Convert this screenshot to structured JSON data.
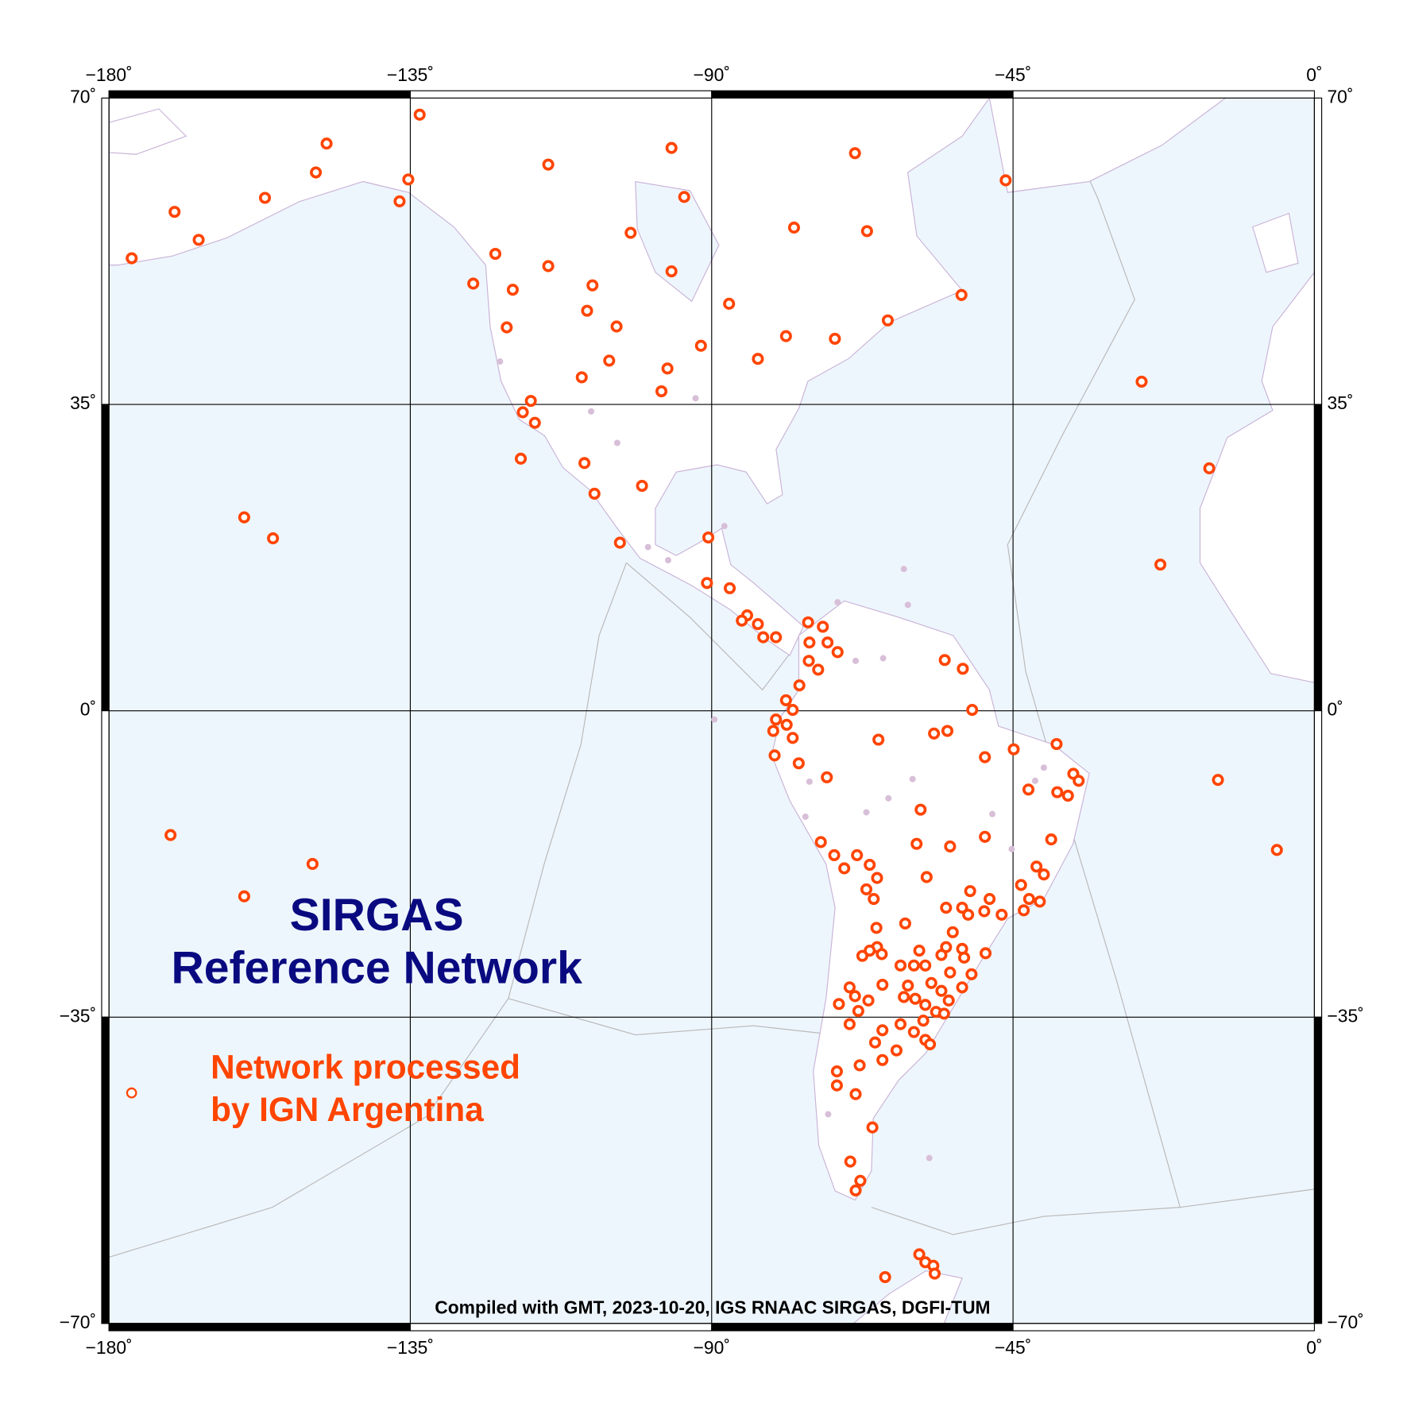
{
  "map": {
    "title": [
      "SIRGAS",
      "Reference Network"
    ],
    "legend": [
      "Network processed",
      "by IGN Argentina"
    ],
    "credit": "Compiled with GMT, 2023-10-20, IGS RNAAC SIRGAS, DGFI-TUM",
    "xlim": [
      -180,
      0
    ],
    "ylim": [
      -70,
      70
    ],
    "xticks": [
      {
        "value": -180,
        "label": "−180˚"
      },
      {
        "value": -135,
        "label": "−135˚"
      },
      {
        "value": -90,
        "label": "−90˚"
      },
      {
        "value": -45,
        "label": "−45˚"
      },
      {
        "value": 0,
        "label": "0˚"
      }
    ],
    "yticks": [
      {
        "value": 70,
        "label": "70˚"
      },
      {
        "value": 35,
        "label": "35˚"
      },
      {
        "value": 0,
        "label": "0˚"
      },
      {
        "value": -35,
        "label": "−35˚"
      },
      {
        "value": -70,
        "label": "−70˚"
      }
    ],
    "grid": true,
    "stations": {
      "color": "#ff4500",
      "lon": [
        -133.6,
        -147.5,
        -149.1,
        -156.7,
        -170.2,
        -166.6,
        -176.6,
        -135.3,
        -136.6,
        -114.4,
        -96.0,
        -94.1,
        -68.6,
        -46.1,
        -77.7,
        -66.8,
        -102.1,
        -122.3,
        -114.4,
        -96.0,
        -125.6,
        -119.7,
        -107.8,
        -108.6,
        -87.4,
        -52.7,
        -120.6,
        -104.2,
        -63.7,
        -78.9,
        -71.6,
        -91.6,
        -105.3,
        -83.1,
        -109.4,
        -96.6,
        -97.5,
        -25.8,
        -117.0,
        -118.2,
        -116.4,
        -118.5,
        -15.7,
        -109.0,
        -107.5,
        -100.4,
        -103.7,
        -159.8,
        -155.5,
        -90.5,
        -23.0,
        -90.7,
        -87.3,
        -84.7,
        -85.5,
        -83.1,
        -82.3,
        -80.4,
        -75.6,
        -73.4,
        -75.4,
        -72.7,
        -71.2,
        -75.5,
        -74.1,
        -76.9,
        -55.2,
        -52.5,
        -78.9,
        -77.9,
        -80.4,
        -78.8,
        -80.8,
        -77.9,
        -80.6,
        -77.0,
        -65.1,
        -51.1,
        -56.8,
        -54.8,
        -49.2,
        -44.9,
        -38.5,
        -36.0,
        -35.2,
        -14.4,
        -72.8,
        -38.4,
        -36.8,
        -42.7,
        -58.8,
        -49.2,
        -39.3,
        -59.4,
        -54.4,
        -5.6,
        -73.7,
        -71.7,
        -68.3,
        -70.2,
        -66.4,
        -65.3,
        -41.5,
        -40.4,
        -170.8,
        -149.6,
        -159.8,
        -57.9,
        -51.4,
        -48.5,
        -55.0,
        -52.6,
        -49.3,
        -46.7,
        -43.8,
        -42.6,
        -41.0,
        -43.4,
        -66.9,
        -65.8,
        -61.1,
        -65.4,
        -54.0,
        -51.7,
        -55.0,
        -49.1,
        -52.6,
        -67.5,
        -65.3,
        -66.4,
        -64.6,
        -61.8,
        -59.0,
        -59.8,
        -58.1,
        -55.7,
        -52.3,
        -54.4,
        -51.2,
        -69.4,
        -68.6,
        -64.5,
        -60.7,
        -57.2,
        -55.7,
        -52.6,
        -71.0,
        -68.1,
        -66.6,
        -61.3,
        -59.6,
        -58.1,
        -54.6,
        -56.5,
        -58.4,
        -55.3,
        -69.4,
        -64.5,
        -61.8,
        -59.8,
        -65.6,
        -58.1,
        -57.4,
        -62.4,
        -64.5,
        -71.3,
        -67.9,
        -71.3,
        -68.5,
        -66.0,
        -69.3,
        -67.8,
        -68.5,
        -59.0,
        -58.1,
        -56.9,
        -56.7,
        -64.1
      ],
      "lat": [
        68.1,
        64.8,
        61.5,
        58.6,
        57.0,
        53.8,
        51.7,
        60.7,
        58.2,
        62.4,
        64.3,
        58.7,
        63.7,
        60.6,
        55.2,
        54.8,
        54.6,
        52.2,
        50.8,
        50.2,
        48.8,
        48.1,
        48.6,
        45.7,
        46.5,
        47.5,
        43.8,
        43.9,
        44.6,
        42.8,
        42.5,
        41.7,
        40.0,
        40.2,
        38.1,
        39.1,
        36.5,
        37.6,
        35.4,
        34.1,
        32.9,
        28.8,
        27.7,
        28.3,
        24.8,
        25.7,
        19.2,
        22.1,
        19.7,
        19.8,
        16.7,
        14.6,
        14.0,
        10.9,
        10.3,
        9.9,
        8.4,
        8.4,
        10.1,
        9.6,
        7.8,
        7.8,
        6.7,
        5.7,
        4.7,
        2.9,
        5.8,
        4.8,
        1.2,
        0.1,
        -1.0,
        -1.6,
        -2.3,
        -3.1,
        -5.1,
        -6.0,
        -3.3,
        0.1,
        -2.6,
        -2.3,
        -5.3,
        -4.4,
        -3.8,
        -7.2,
        -8.0,
        -7.9,
        -7.6,
        -9.3,
        -9.7,
        -9.0,
        -11.3,
        -14.4,
        -14.7,
        -15.2,
        -15.5,
        -15.9,
        -15.0,
        -16.5,
        -16.5,
        -18.0,
        -17.6,
        -19.1,
        -17.8,
        -18.7,
        -14.2,
        -17.5,
        -21.2,
        -19.0,
        -20.6,
        -21.5,
        -22.5,
        -22.5,
        -22.9,
        -23.3,
        -19.9,
        -21.5,
        -21.8,
        -22.8,
        -20.4,
        -21.5,
        -24.3,
        -24.8,
        -25.3,
        -23.3,
        -27.0,
        -27.7,
        -27.2,
        -28.0,
        -27.0,
        -27.4,
        -27.8,
        -29.1,
        -27.4,
        -29.1,
        -29.1,
        -27.9,
        -28.2,
        -29.9,
        -30.1,
        -31.6,
        -32.6,
        -31.3,
        -31.4,
        -31.1,
        -32.0,
        -31.6,
        -33.5,
        -34.3,
        -33.1,
        -32.7,
        -32.9,
        -33.6,
        -33.1,
        -34.4,
        -35.4,
        -34.6,
        -35.8,
        -36.5,
        -35.8,
        -36.7,
        -37.9,
        -37.6,
        -38.1,
        -38.8,
        -39.9,
        -41.2,
        -40.5,
        -42.8,
        -43.8,
        -47.6,
        -51.5,
        -53.7,
        -54.8,
        -62.1,
        -63.0,
        -63.4,
        -64.3,
        -64.7
      ]
    },
    "other_stations": {
      "color": "#d8bfd8",
      "lon": [
        -121.6,
        -92.4,
        -108.0,
        -104.1,
        -99.5,
        -96.5,
        -88.1,
        -61.3,
        -60.7,
        -71.2,
        -68.5,
        -64.4,
        -89.6,
        -75.4,
        -66.9,
        -60.0,
        -41.7,
        -48.1,
        -45.2,
        -76.0,
        -57.5,
        -40.4,
        -63.6,
        -72.6
      ],
      "lat": [
        39.9,
        35.7,
        34.2,
        30.6,
        18.7,
        17.2,
        21.1,
        16.2,
        12.1,
        12.4,
        5.7,
        6.0,
        -1.0,
        -8.1,
        -11.6,
        -7.8,
        -8.0,
        -11.8,
        -15.8,
        -12.1,
        -51.1,
        -6.5,
        -10.0,
        -46.1
      ]
    }
  }
}
